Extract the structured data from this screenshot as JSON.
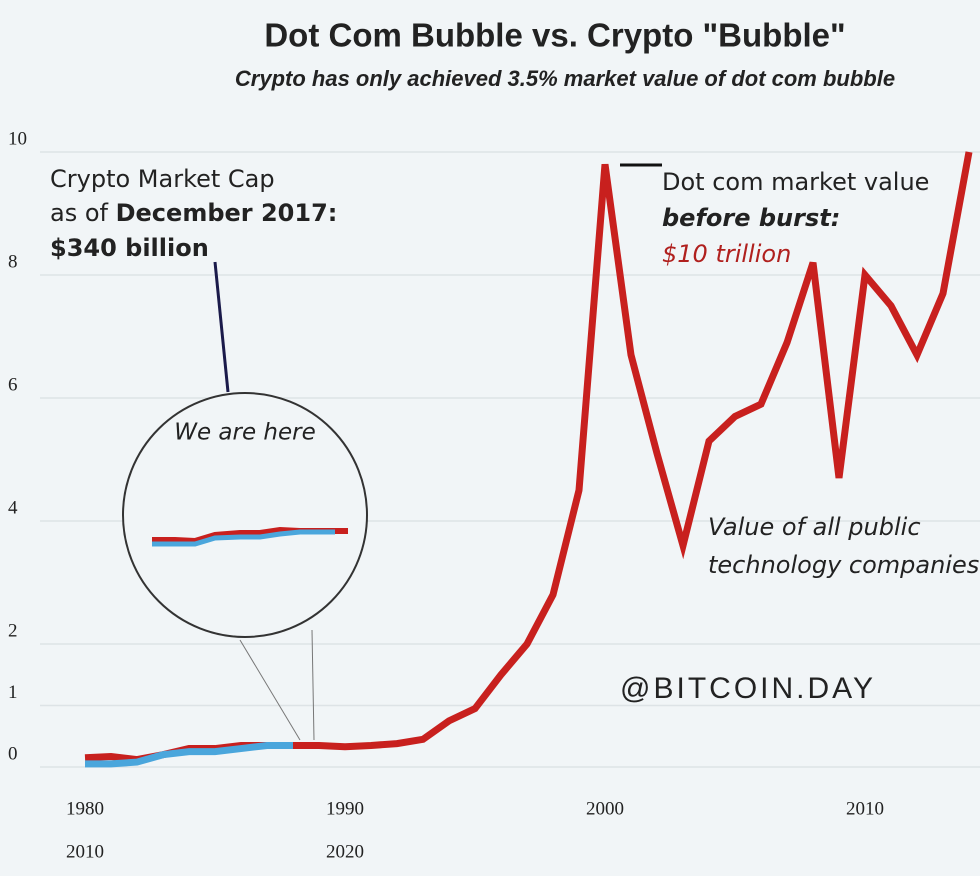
{
  "chart_data": {
    "type": "line",
    "title": "Dot Com Bubble vs. Crypto \"Bubble\"",
    "subtitle": "Crypto has only achieved 3.5% market value of dot com bubble",
    "xlim": [
      1978,
      2014.5
    ],
    "xticks": [
      1980,
      1990,
      2000,
      2010
    ],
    "x2lim": [
      2008,
      2044.5
    ],
    "x2ticks": [
      2010,
      2020
    ],
    "ylim": [
      0,
      10
    ],
    "yticks": [
      0,
      1,
      2,
      4,
      6,
      8,
      10
    ],
    "grid": true,
    "series": [
      {
        "color": "#c8201e",
        "x": [
          1980,
          1981,
          1982,
          1983,
          1984,
          1985,
          1986,
          1987,
          1988,
          1989,
          1990,
          1991,
          1992,
          1993,
          1994,
          1995,
          1996,
          1997,
          1998,
          1999,
          2000,
          2001,
          2002,
          2003,
          2004,
          2005,
          2006,
          2007,
          2008,
          2009,
          2010,
          2011,
          2012,
          2013,
          2014
        ],
        "values": [
          0.15,
          0.17,
          0.12,
          0.2,
          0.3,
          0.3,
          0.35,
          0.35,
          0.35,
          0.35,
          0.33,
          0.35,
          0.38,
          0.45,
          0.75,
          0.95,
          1.5,
          2.0,
          2.8,
          4.5,
          9.8,
          6.7,
          5.1,
          3.6,
          5.3,
          5.7,
          5.9,
          6.9,
          8.2,
          4.7,
          8.0,
          7.5,
          6.7,
          7.7,
          10
        ]
      },
      {
        "color": "#4aa6dc",
        "axis": "x2",
        "x": [
          2010,
          2011,
          2012,
          2013,
          2014,
          2015,
          2016,
          2017,
          2018
        ],
        "values": [
          0.05,
          0.05,
          0.08,
          0.2,
          0.25,
          0.25,
          0.3,
          0.35,
          0.35
        ]
      }
    ],
    "annotations": {
      "crypto": [
        "Crypto Market Cap",
        "as of ",
        "December 2017:",
        "$340 billion"
      ],
      "dotcom": [
        "Dot com market value",
        "before burst:",
        "$10 trillion"
      ],
      "tech": [
        "Value of all public",
        "technology companies"
      ],
      "inset": "We are here",
      "watermark": "@BITCOIN.DAY"
    }
  }
}
